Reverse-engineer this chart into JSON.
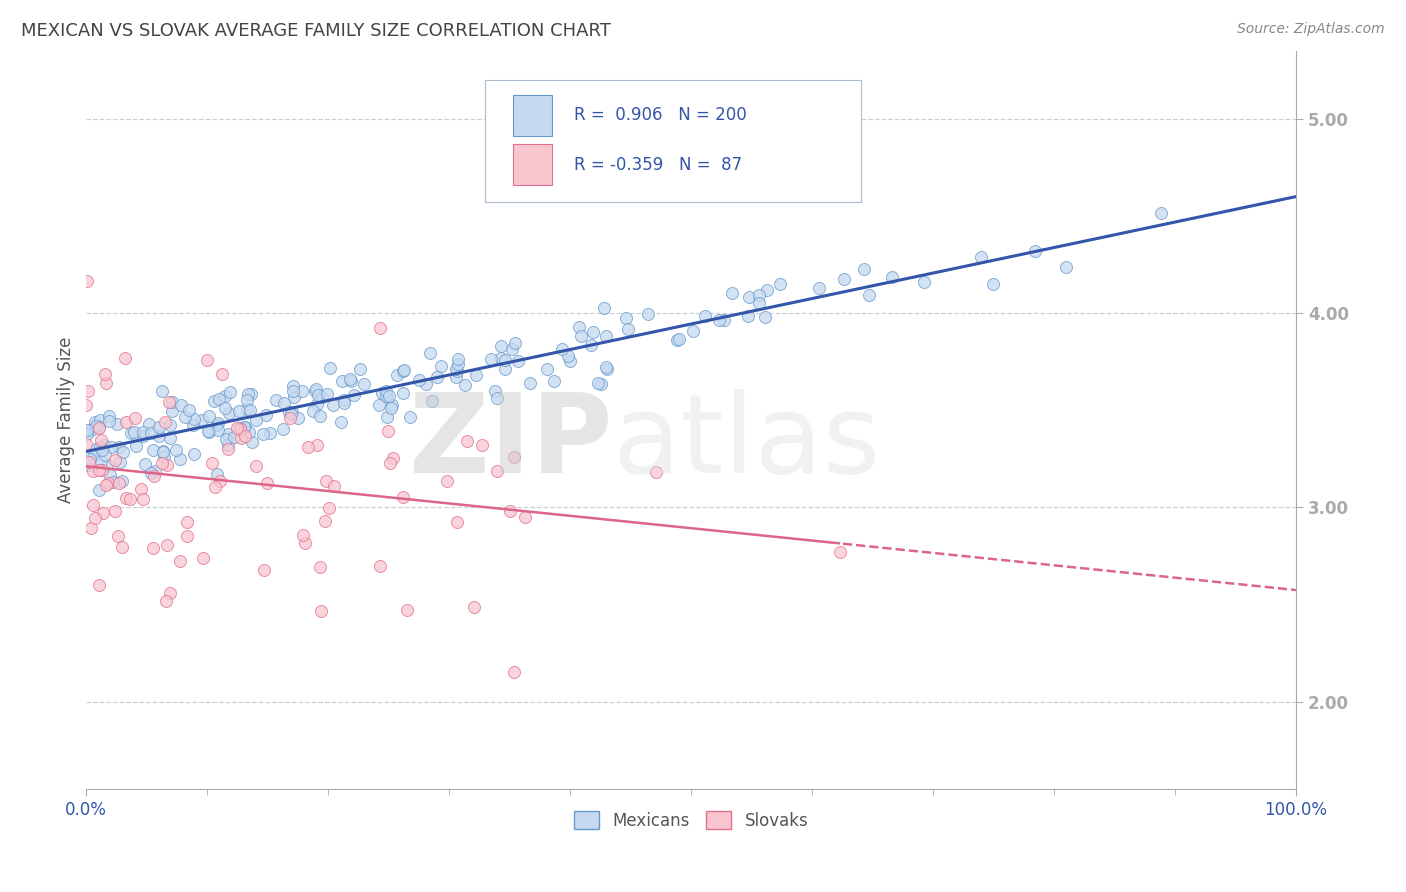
{
  "title": "MEXICAN VS SLOVAK AVERAGE FAMILY SIZE CORRELATION CHART",
  "source_text": "Source: ZipAtlas.com",
  "ylabel": "Average Family Size",
  "xmin": 0.0,
  "xmax": 1.0,
  "ymin": 1.55,
  "ymax": 5.35,
  "yticks": [
    2.0,
    3.0,
    4.0,
    5.0
  ],
  "xtick_positions": [
    0.0,
    1.0
  ],
  "xtick_labels": [
    "0.0%",
    "100.0%"
  ],
  "ytick_labels": [
    "2.00",
    "3.00",
    "4.00",
    "5.00"
  ],
  "mexican_fill_color": "#c5d9f0",
  "mexican_edge_color": "#6699cc",
  "slovak_fill_color": "#f9c6d0",
  "slovak_edge_color": "#e07090",
  "trend_mexican_color": "#3355aa",
  "trend_slovak_color": "#dd6688",
  "R_mexican": 0.906,
  "N_mexican": 200,
  "R_slovak": -0.359,
  "N_slovak": 87,
  "background_color": "#ffffff",
  "grid_color": "#c8d0dc",
  "title_color": "#444444",
  "label_color": "#555555",
  "tick_color": "#3355aa",
  "legend_value_color": "#3355aa",
  "watermark_zip_color": "#cccccc",
  "watermark_atlas_color": "#dddddd"
}
